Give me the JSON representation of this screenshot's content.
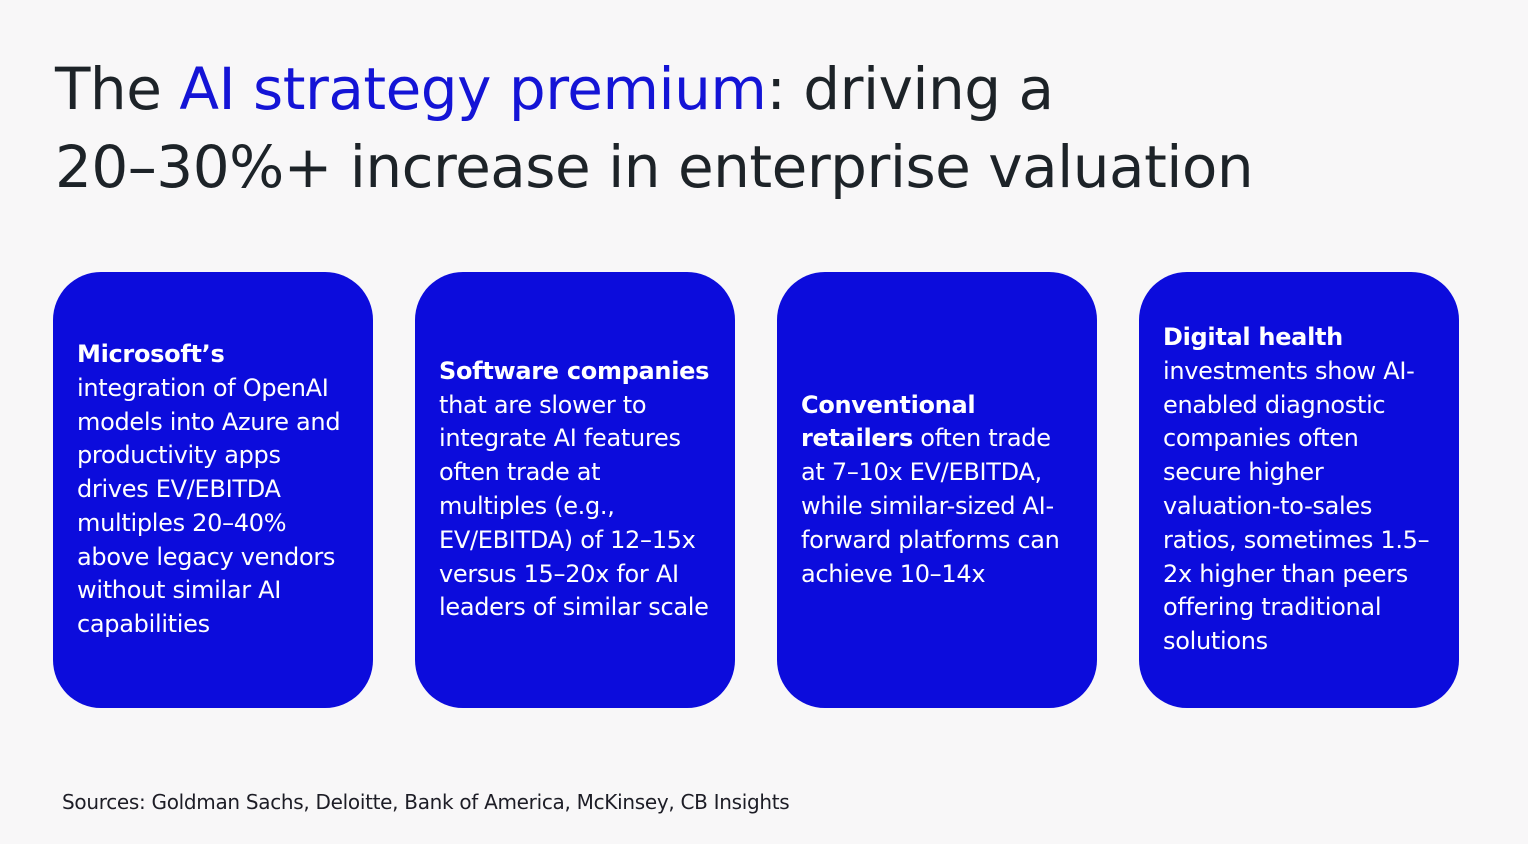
{
  "title": {
    "line1_before": "The ",
    "line1_accent": "AI strategy premium",
    "line1_after": ": driving a",
    "line2": "20–30%+ increase in enterprise valuation"
  },
  "colors": {
    "accent": "#1414d6",
    "card_background": "#0c0cdc",
    "card_text": "#ffffff",
    "page_background": "#f8f7f8"
  },
  "cards": [
    {
      "bold": "Microsoft’s",
      "rest": " integration of OpenAI models into Azure and productivity apps drives EV/EBITDA multiples 20–40% above legacy vendors without similar AI capabilities"
    },
    {
      "bold": "Software companies",
      "rest": " that are slower to integrate AI features often trade at multiples (e.g., EV/EBITDA) of 12–15x versus 15–20x for AI leaders of similar scale"
    },
    {
      "bold": "Conventional retailers",
      "rest": " often trade at 7–10x EV/EBITDA, while similar-sized AI-forward platforms can achieve 10–14x"
    },
    {
      "bold": "Digital health",
      "rest": " investments show AI-enabled diagnostic companies often secure higher valuation-to-sales ratios, sometimes 1.5–2x higher than peers offering traditional solutions"
    }
  ],
  "sources": "Sources: Goldman Sachs, Deloitte, Bank of America, McKinsey, CB Insights"
}
